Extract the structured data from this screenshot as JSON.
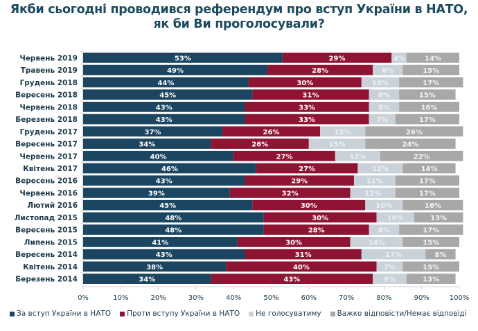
{
  "title_line1": "Якби сьогодні проводився референдум про вступ України в НАТО,",
  "title_line2": "як би Ви проголосували?",
  "chart_data": {
    "type": "bar",
    "orientation": "horizontal",
    "stacked": true,
    "title": "Якби сьогодні проводився референдум про вступ України в НАТО, як би Ви проголосували?",
    "xlabel": "",
    "ylabel": "",
    "xlim": [
      0,
      100
    ],
    "x_ticks": [
      "0%",
      "10%",
      "20%",
      "30%",
      "40%",
      "50%",
      "60%",
      "70%",
      "80%",
      "90%",
      "100%"
    ],
    "grid": false,
    "legend_position": "bottom",
    "categories": [
      "Червень 2019",
      "Травень 2019",
      "Грудень 2018",
      "Вересень 2018",
      "Червень 2018",
      "Березень 2018",
      "Грудень 2017",
      "Вересень 2017",
      "Червень 2017",
      "Квітень 2017",
      "Вересень 2016",
      "Червень 2016",
      "Лютий 2016",
      "Листопад 2015",
      "Вересень 2015",
      "Липень 2015",
      "Вересень 2014",
      "Квітень 2014",
      "Березень 2014"
    ],
    "series": [
      {
        "name": "За вступ України в НАТО",
        "color": "#1b4560",
        "label_color": "#ffffff",
        "values": [
          53,
          49,
          44,
          45,
          43,
          43,
          37,
          34,
          40,
          46,
          43,
          39,
          45,
          48,
          48,
          41,
          43,
          38,
          34
        ]
      },
      {
        "name": "Проти вступу України в НАТО",
        "color": "#8f1434",
        "label_color": "#ffffff",
        "values": [
          29,
          28,
          30,
          31,
          33,
          33,
          26,
          26,
          27,
          27,
          29,
          32,
          30,
          30,
          28,
          30,
          31,
          40,
          43
        ]
      },
      {
        "name": "Не голосуватиму",
        "color": "#c9d1d9",
        "label_color": "#eef1f4",
        "values": [
          4,
          8,
          10,
          8,
          8,
          7,
          12,
          15,
          12,
          12,
          11,
          12,
          10,
          10,
          8,
          14,
          17,
          7,
          9
        ]
      },
      {
        "name": "Важко відповісти/Немає відповіді",
        "color": "#a8a8a8",
        "label_color": "#f4f4f4",
        "values": [
          14,
          15,
          17,
          15,
          16,
          17,
          26,
          24,
          22,
          14,
          17,
          17,
          16,
          13,
          17,
          15,
          8,
          15,
          13
        ]
      }
    ]
  }
}
